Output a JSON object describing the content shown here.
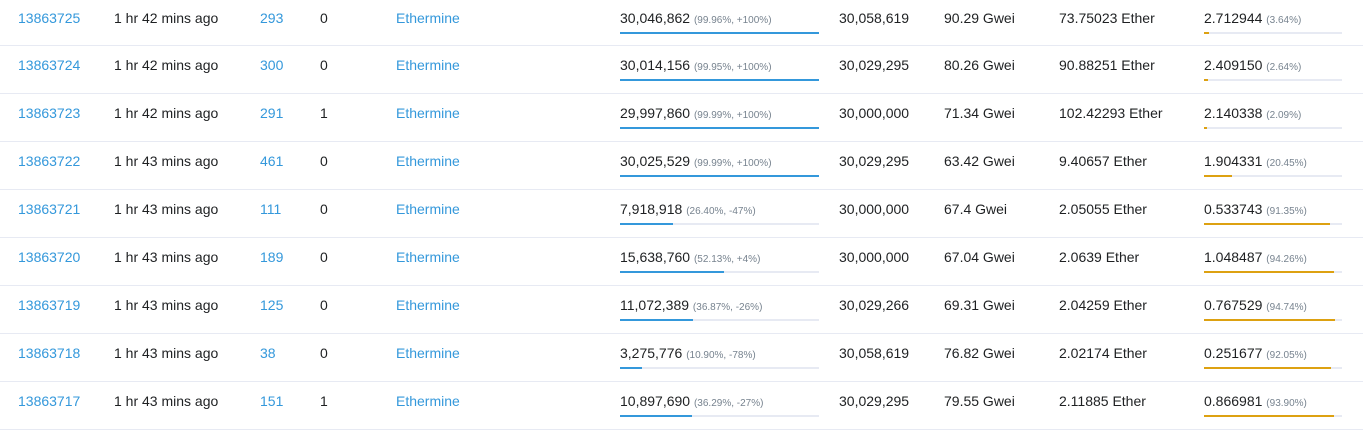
{
  "colors": {
    "link": "#3498db",
    "gas_bar": "#3498db",
    "burn_bar": "#dda111",
    "track": "#e7eaf3"
  },
  "rows": [
    {
      "block": "13863725",
      "age": "1 hr 42 mins ago",
      "txn": "293",
      "uncles": "0",
      "miner": "Ethermine",
      "gas_used": "30,046,862",
      "gas_detail": "(99.96%, +100%)",
      "gas_pct": 99.96,
      "gas_limit": "30,058,619",
      "base_fee": "90.29 Gwei",
      "reward": "73.75023 Ether",
      "burnt": "2.712944",
      "burnt_detail": "(3.64%)",
      "burnt_pct": 3.64
    },
    {
      "block": "13863724",
      "age": "1 hr 42 mins ago",
      "txn": "300",
      "uncles": "0",
      "miner": "Ethermine",
      "gas_used": "30,014,156",
      "gas_detail": "(99.95%, +100%)",
      "gas_pct": 99.95,
      "gas_limit": "30,029,295",
      "base_fee": "80.26 Gwei",
      "reward": "90.88251 Ether",
      "burnt": "2.409150",
      "burnt_detail": "(2.64%)",
      "burnt_pct": 2.64
    },
    {
      "block": "13863723",
      "age": "1 hr 42 mins ago",
      "txn": "291",
      "uncles": "1",
      "miner": "Ethermine",
      "gas_used": "29,997,860",
      "gas_detail": "(99.99%, +100%)",
      "gas_pct": 99.99,
      "gas_limit": "30,000,000",
      "base_fee": "71.34 Gwei",
      "reward": "102.42293 Ether",
      "burnt": "2.140338",
      "burnt_detail": "(2.09%)",
      "burnt_pct": 2.09
    },
    {
      "block": "13863722",
      "age": "1 hr 43 mins ago",
      "txn": "461",
      "uncles": "0",
      "miner": "Ethermine",
      "gas_used": "30,025,529",
      "gas_detail": "(99.99%, +100%)",
      "gas_pct": 99.99,
      "gas_limit": "30,029,295",
      "base_fee": "63.42 Gwei",
      "reward": "9.40657 Ether",
      "burnt": "1.904331",
      "burnt_detail": "(20.45%)",
      "burnt_pct": 20.45
    },
    {
      "block": "13863721",
      "age": "1 hr 43 mins ago",
      "txn": "111",
      "uncles": "0",
      "miner": "Ethermine",
      "gas_used": "7,918,918",
      "gas_detail": "(26.40%, -47%)",
      "gas_pct": 26.4,
      "gas_limit": "30,000,000",
      "base_fee": "67.4 Gwei",
      "reward": "2.05055 Ether",
      "burnt": "0.533743",
      "burnt_detail": "(91.35%)",
      "burnt_pct": 91.35
    },
    {
      "block": "13863720",
      "age": "1 hr 43 mins ago",
      "txn": "189",
      "uncles": "0",
      "miner": "Ethermine",
      "gas_used": "15,638,760",
      "gas_detail": "(52.13%, +4%)",
      "gas_pct": 52.13,
      "gas_limit": "30,000,000",
      "base_fee": "67.04 Gwei",
      "reward": "2.0639 Ether",
      "burnt": "1.048487",
      "burnt_detail": "(94.26%)",
      "burnt_pct": 94.26
    },
    {
      "block": "13863719",
      "age": "1 hr 43 mins ago",
      "txn": "125",
      "uncles": "0",
      "miner": "Ethermine",
      "gas_used": "11,072,389",
      "gas_detail": "(36.87%, -26%)",
      "gas_pct": 36.87,
      "gas_limit": "30,029,266",
      "base_fee": "69.31 Gwei",
      "reward": "2.04259 Ether",
      "burnt": "0.767529",
      "burnt_detail": "(94.74%)",
      "burnt_pct": 94.74
    },
    {
      "block": "13863718",
      "age": "1 hr 43 mins ago",
      "txn": "38",
      "uncles": "0",
      "miner": "Ethermine",
      "gas_used": "3,275,776",
      "gas_detail": "(10.90%, -78%)",
      "gas_pct": 10.9,
      "gas_limit": "30,058,619",
      "base_fee": "76.82 Gwei",
      "reward": "2.02174 Ether",
      "burnt": "0.251677",
      "burnt_detail": "(92.05%)",
      "burnt_pct": 92.05
    },
    {
      "block": "13863717",
      "age": "1 hr 43 mins ago",
      "txn": "151",
      "uncles": "1",
      "miner": "Ethermine",
      "gas_used": "10,897,690",
      "gas_detail": "(36.29%, -27%)",
      "gas_pct": 36.29,
      "gas_limit": "30,029,295",
      "base_fee": "79.55 Gwei",
      "reward": "2.11885 Ether",
      "burnt": "0.866981",
      "burnt_detail": "(93.90%)",
      "burnt_pct": 93.9
    }
  ]
}
